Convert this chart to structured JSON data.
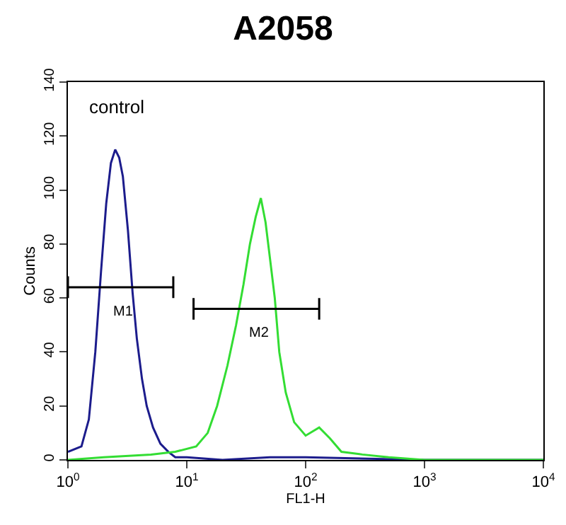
{
  "chart_data": {
    "type": "line",
    "title": "A2058",
    "xlabel": "FL1-H",
    "ylabel": "Counts",
    "log": "x",
    "xlim": [
      1,
      10000
    ],
    "xticks": [
      {
        "value": 1,
        "label": "10$^{0}$"
      },
      {
        "value": 10,
        "label": "10$^{1}$"
      },
      {
        "value": 100,
        "label": "10$^{2}$"
      },
      {
        "value": 1000,
        "label": "10$^{3}$"
      },
      {
        "value": 10000,
        "label": "10$^{4}$"
      }
    ],
    "ylim": [
      0,
      140
    ],
    "yticks": [
      0,
      20,
      40,
      60,
      80,
      100,
      120,
      140
    ],
    "grid": false,
    "series": [
      {
        "color": "#1c1c8c",
        "x": [
          1,
          1.3,
          1.5,
          1.7,
          1.9,
          2.1,
          2.3,
          2.5,
          2.7,
          2.9,
          3.2,
          3.5,
          3.8,
          4.2,
          4.6,
          5.2,
          6,
          7,
          8,
          10,
          20,
          50,
          100,
          1000,
          10000
        ],
        "values": [
          3,
          5,
          15,
          40,
          70,
          95,
          110,
          115,
          112,
          105,
          85,
          62,
          45,
          30,
          20,
          12,
          6,
          3,
          1,
          1,
          0,
          1,
          1,
          0,
          0
        ]
      },
      {
        "color": "#33dd33",
        "x": [
          1,
          2,
          5,
          8,
          12,
          15,
          18,
          22,
          26,
          30,
          34,
          38,
          42,
          46,
          50,
          55,
          60,
          68,
          80,
          100,
          130,
          160,
          200,
          300,
          500,
          1000,
          10000
        ],
        "values": [
          0,
          1,
          2,
          3,
          5,
          10,
          20,
          35,
          50,
          65,
          80,
          90,
          97,
          88,
          75,
          60,
          40,
          25,
          14,
          9,
          12,
          8,
          3,
          2,
          1,
          0,
          0
        ]
      },
      {
        "color": "#000000",
        "x": [
          1,
          1,
          1,
          7.7,
          7.7,
          7.7
        ],
        "values": [
          68,
          60,
          64,
          64,
          68,
          60
        ]
      },
      {
        "color": "#000000",
        "x": [
          11.4,
          11.4,
          11.4,
          130,
          130,
          130
        ],
        "values": [
          60,
          52,
          56,
          56,
          60,
          52
        ]
      }
    ],
    "annotations": [
      "control",
      {
        "text": "M1",
        "x": 2.9,
        "y": 64
      },
      {
        "text": "M2",
        "x": 40,
        "y": 56
      }
    ]
  }
}
